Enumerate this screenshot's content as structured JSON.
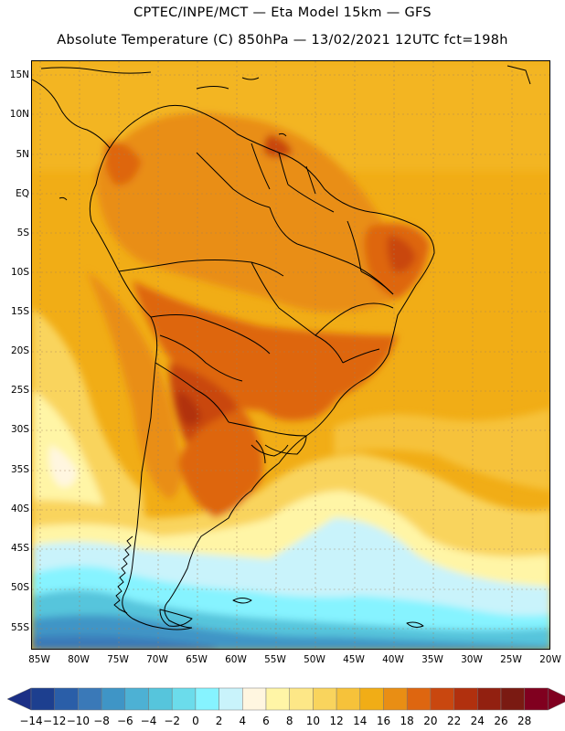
{
  "header": {
    "title_line1": "CPTEC/INPE/MCT —  Eta Model 15km — GFS",
    "title_line2": "Absolute Temperature (C) 850hPa — 13/02/2021 12UTC fct=198h"
  },
  "map": {
    "lat_labels": [
      "15N",
      "10N",
      "5N",
      "EQ",
      "5S",
      "10S",
      "15S",
      "20S",
      "25S",
      "30S",
      "35S",
      "40S",
      "45S",
      "50S",
      "55S"
    ],
    "lon_labels": [
      "85W",
      "80W",
      "75W",
      "70W",
      "65W",
      "60W",
      "55W",
      "50W",
      "45W",
      "40W",
      "35W",
      "30W",
      "25W",
      "20W"
    ]
  },
  "colorbar": {
    "labels": [
      "-14",
      "-12",
      "-10",
      "-8",
      "-6",
      "-4",
      "-2",
      "0",
      "2",
      "4",
      "6",
      "8",
      "10",
      "12",
      "14",
      "16",
      "18",
      "20",
      "22",
      "24",
      "26",
      "28"
    ],
    "colors": [
      "#1d3f8f",
      "#2a5ea8",
      "#3a79b8",
      "#3f95c6",
      "#4db1d4",
      "#56c5dc",
      "#6bdceb",
      "#86f3ff",
      "#c9f3fb",
      "#fff6e0",
      "#fff5a6",
      "#fde787",
      "#f9d45d",
      "#f6c23a",
      "#f1ad16",
      "#e98e14",
      "#de6610",
      "#c9470f",
      "#b1300e",
      "#922010",
      "#7a1a12",
      "#80001f"
    ],
    "left_arrow_color": "#1b2f86",
    "right_arrow_color": "#800020"
  }
}
